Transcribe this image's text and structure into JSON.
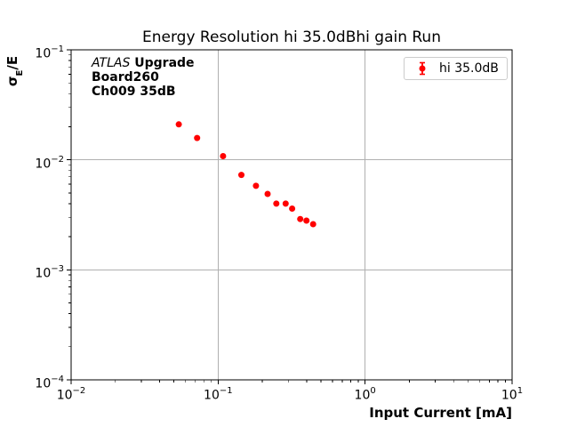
{
  "title": "Energy Resolution hi 35.0dBhi gain Run",
  "annotation": {
    "line1_italic": "ATLAS",
    "line1_rest": " Upgrade",
    "line2": "Board260",
    "line3": "Ch009 35dB"
  },
  "legend": {
    "label": "hi 35.0dB",
    "marker_color": "#ff0000"
  },
  "axes": {
    "xlabel": "Input Current [mA]",
    "ylabel_sym": "σ",
    "ylabel_sub": "E",
    "ylabel_rest": "/E",
    "tick_base": "10"
  },
  "chart_data": {
    "type": "scatter",
    "xscale": "log",
    "yscale": "log",
    "xlim": [
      0.01,
      10
    ],
    "ylim": [
      0.0001,
      0.1
    ],
    "grid": true,
    "grid_color": "#b0b0b0",
    "spine_color": "#000000",
    "legend_position": "upper right",
    "xticks": [
      {
        "value": 0.01,
        "exp": "−2"
      },
      {
        "value": 0.1,
        "exp": "−1"
      },
      {
        "value": 1,
        "exp": "0"
      },
      {
        "value": 10,
        "exp": "1"
      }
    ],
    "yticks": [
      {
        "value": 0.1,
        "exp": "−1"
      },
      {
        "value": 0.01,
        "exp": "−2"
      },
      {
        "value": 0.001,
        "exp": "−3"
      },
      {
        "value": 0.0001,
        "exp": "−4"
      }
    ],
    "series": [
      {
        "name": "hi 35.0dB",
        "color": "#ff0000",
        "marker": "circle-with-errorbar",
        "points": [
          {
            "x": 0.054,
            "y": 0.021
          },
          {
            "x": 0.072,
            "y": 0.0158
          },
          {
            "x": 0.108,
            "y": 0.0108
          },
          {
            "x": 0.144,
            "y": 0.0073
          },
          {
            "x": 0.181,
            "y": 0.0058
          },
          {
            "x": 0.217,
            "y": 0.0049
          },
          {
            "x": 0.249,
            "y": 0.004
          },
          {
            "x": 0.288,
            "y": 0.004
          },
          {
            "x": 0.319,
            "y": 0.0036
          },
          {
            "x": 0.362,
            "y": 0.0029
          },
          {
            "x": 0.399,
            "y": 0.0028
          },
          {
            "x": 0.443,
            "y": 0.0026
          }
        ]
      }
    ]
  }
}
